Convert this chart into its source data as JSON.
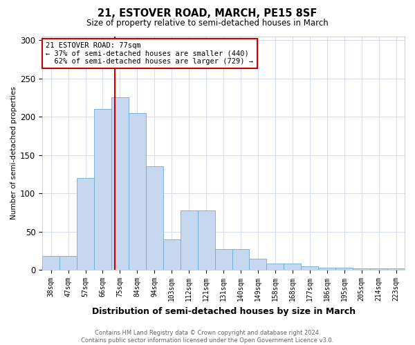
{
  "title": "21, ESTOVER ROAD, MARCH, PE15 8SF",
  "subtitle": "Size of property relative to semi-detached houses in March",
  "xlabel": "Distribution of semi-detached houses by size in March",
  "ylabel": "Number of semi-detached properties",
  "categories": [
    "38sqm",
    "47sqm",
    "57sqm",
    "66sqm",
    "75sqm",
    "84sqm",
    "94sqm",
    "103sqm",
    "112sqm",
    "121sqm",
    "131sqm",
    "140sqm",
    "149sqm",
    "158sqm",
    "168sqm",
    "177sqm",
    "186sqm",
    "195sqm",
    "205sqm",
    "214sqm",
    "223sqm"
  ],
  "values": [
    18,
    18,
    120,
    210,
    225,
    205,
    135,
    40,
    78,
    78,
    27,
    27,
    15,
    8,
    8,
    5,
    3,
    3,
    2,
    2,
    2
  ],
  "bar_color": "#c5d8f0",
  "bar_edge_color": "#6aaad4",
  "vline_color": "#cc0000",
  "property_label": "21 ESTOVER ROAD: 77sqm",
  "pct_smaller": 37,
  "pct_larger": 62,
  "n_smaller": 440,
  "n_larger": 729,
  "footer_line1": "Contains HM Land Registry data © Crown copyright and database right 2024.",
  "footer_line2": "Contains public sector information licensed under the Open Government Licence v3.0.",
  "ylim": [
    0,
    305
  ],
  "background_color": "#ffffff",
  "grid_color": "#d0d8e8"
}
